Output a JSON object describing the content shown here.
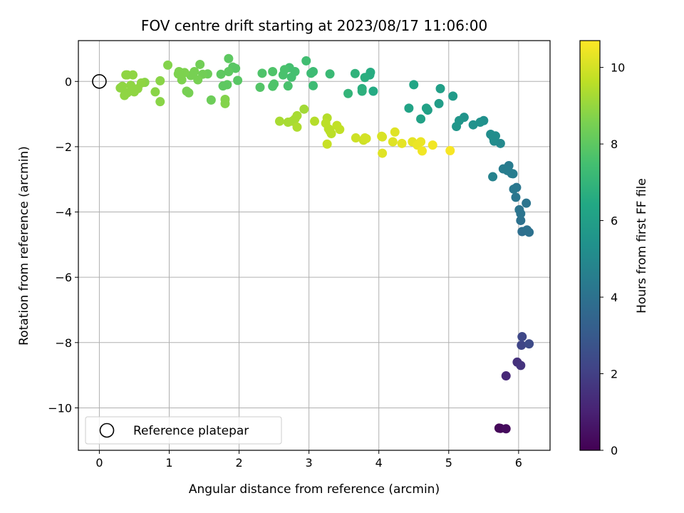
{
  "chart_data": {
    "type": "scatter",
    "title": "FOV centre drift starting at 2023/08/17 11:06:00",
    "xlabel": "Angular distance from reference (arcmin)",
    "ylabel": "Rotation from reference (arcmin)",
    "xlim": [
      -0.3,
      6.45
    ],
    "ylim": [
      -11.3,
      1.25
    ],
    "xticks": [
      0,
      1,
      2,
      3,
      4,
      5,
      6
    ],
    "yticks": [
      -10,
      -8,
      -6,
      -4,
      -2,
      0
    ],
    "grid": true,
    "legend": {
      "position": "lower-left",
      "entries": [
        "Reference platepar"
      ]
    },
    "reference_point": {
      "x": 0,
      "y": 0
    },
    "colorbar": {
      "label": "Hours from first FF file",
      "range": [
        0,
        10.7
      ],
      "ticks": [
        0,
        2,
        4,
        6,
        8,
        10
      ],
      "colormap": "viridis"
    },
    "points": [
      {
        "x": 5.72,
        "y": -10.62,
        "t": 0.1
      },
      {
        "x": 5.74,
        "y": -10.63,
        "t": 0.2
      },
      {
        "x": 5.82,
        "y": -10.64,
        "t": 0.3
      },
      {
        "x": 5.82,
        "y": -9.02,
        "t": 1.2
      },
      {
        "x": 5.98,
        "y": -8.6,
        "t": 1.5
      },
      {
        "x": 6.03,
        "y": -8.7,
        "t": 1.6
      },
      {
        "x": 6.04,
        "y": -8.08,
        "t": 2.2
      },
      {
        "x": 6.05,
        "y": -7.82,
        "t": 2.3
      },
      {
        "x": 6.15,
        "y": -8.04,
        "t": 2.4
      },
      {
        "x": 6.05,
        "y": -4.6,
        "t": 3.9
      },
      {
        "x": 6.15,
        "y": -4.62,
        "t": 4.0
      },
      {
        "x": 6.03,
        "y": -4.26,
        "t": 4.0
      },
      {
        "x": 6.12,
        "y": -4.55,
        "t": 4.0
      },
      {
        "x": 6.03,
        "y": -4.05,
        "t": 4.1
      },
      {
        "x": 6.01,
        "y": -3.93,
        "t": 4.1
      },
      {
        "x": 6.11,
        "y": -3.73,
        "t": 4.1
      },
      {
        "x": 5.96,
        "y": -3.55,
        "t": 4.2
      },
      {
        "x": 5.97,
        "y": -3.25,
        "t": 4.2
      },
      {
        "x": 5.93,
        "y": -3.3,
        "t": 4.3
      },
      {
        "x": 5.9,
        "y": -2.82,
        "t": 4.4
      },
      {
        "x": 5.86,
        "y": -2.58,
        "t": 4.4
      },
      {
        "x": 5.78,
        "y": -2.68,
        "t": 4.5
      },
      {
        "x": 5.84,
        "y": -2.73,
        "t": 4.5
      },
      {
        "x": 5.92,
        "y": -2.83,
        "t": 4.5
      },
      {
        "x": 5.63,
        "y": -2.92,
        "t": 4.7
      },
      {
        "x": 5.74,
        "y": -1.9,
        "t": 5.0
      },
      {
        "x": 5.65,
        "y": -1.83,
        "t": 5.1
      },
      {
        "x": 5.67,
        "y": -1.67,
        "t": 5.2
      },
      {
        "x": 5.6,
        "y": -1.62,
        "t": 5.2
      },
      {
        "x": 5.64,
        "y": -1.73,
        "t": 5.2
      },
      {
        "x": 5.5,
        "y": -1.2,
        "t": 5.3
      },
      {
        "x": 5.45,
        "y": -1.25,
        "t": 5.4
      },
      {
        "x": 5.35,
        "y": -1.33,
        "t": 5.4
      },
      {
        "x": 5.22,
        "y": -1.1,
        "t": 5.5
      },
      {
        "x": 5.15,
        "y": -1.2,
        "t": 5.6
      },
      {
        "x": 5.11,
        "y": -1.38,
        "t": 5.6
      },
      {
        "x": 5.06,
        "y": -0.45,
        "t": 5.8
      },
      {
        "x": 4.86,
        "y": -0.68,
        "t": 5.9
      },
      {
        "x": 4.88,
        "y": -0.22,
        "t": 6.0
      },
      {
        "x": 4.7,
        "y": -0.88,
        "t": 6.0
      },
      {
        "x": 4.68,
        "y": -0.82,
        "t": 6.1
      },
      {
        "x": 4.6,
        "y": -1.15,
        "t": 6.1
      },
      {
        "x": 4.43,
        "y": -0.82,
        "t": 6.2
      },
      {
        "x": 4.5,
        "y": -0.1,
        "t": 6.3
      },
      {
        "x": 3.92,
        "y": -0.3,
        "t": 6.5
      },
      {
        "x": 3.88,
        "y": 0.28,
        "t": 6.6
      },
      {
        "x": 3.87,
        "y": 0.2,
        "t": 6.6
      },
      {
        "x": 3.8,
        "y": 0.12,
        "t": 6.7
      },
      {
        "x": 3.76,
        "y": -0.22,
        "t": 6.7
      },
      {
        "x": 3.76,
        "y": -0.3,
        "t": 6.8
      },
      {
        "x": 3.66,
        "y": 0.24,
        "t": 6.9
      },
      {
        "x": 3.56,
        "y": -0.37,
        "t": 7.0
      },
      {
        "x": 3.3,
        "y": 0.23,
        "t": 7.2
      },
      {
        "x": 3.06,
        "y": -0.13,
        "t": 7.3
      },
      {
        "x": 3.06,
        "y": 0.3,
        "t": 7.3
      },
      {
        "x": 3.03,
        "y": 0.25,
        "t": 7.3
      },
      {
        "x": 2.96,
        "y": 0.63,
        "t": 7.4
      },
      {
        "x": 2.8,
        "y": 0.3,
        "t": 7.5
      },
      {
        "x": 2.75,
        "y": 0.13,
        "t": 7.5
      },
      {
        "x": 2.72,
        "y": 0.42,
        "t": 7.5
      },
      {
        "x": 2.7,
        "y": -0.14,
        "t": 7.6
      },
      {
        "x": 2.65,
        "y": 0.36,
        "t": 7.6
      },
      {
        "x": 2.63,
        "y": 0.2,
        "t": 7.6
      },
      {
        "x": 2.5,
        "y": -0.08,
        "t": 7.7
      },
      {
        "x": 2.48,
        "y": 0.3,
        "t": 7.7
      },
      {
        "x": 2.48,
        "y": -0.15,
        "t": 7.7
      },
      {
        "x": 2.33,
        "y": 0.25,
        "t": 7.7
      },
      {
        "x": 2.3,
        "y": -0.18,
        "t": 7.8
      },
      {
        "x": 1.98,
        "y": 0.03,
        "t": 7.9
      },
      {
        "x": 1.95,
        "y": 0.4,
        "t": 7.9
      },
      {
        "x": 1.91,
        "y": 0.44,
        "t": 7.9
      },
      {
        "x": 1.85,
        "y": 0.7,
        "t": 8.0
      },
      {
        "x": 1.85,
        "y": 0.3,
        "t": 8.0
      },
      {
        "x": 1.83,
        "y": -0.1,
        "t": 8.0
      },
      {
        "x": 1.77,
        "y": -0.14,
        "t": 8.0
      },
      {
        "x": 1.74,
        "y": 0.22,
        "t": 8.0
      },
      {
        "x": 1.6,
        "y": -0.57,
        "t": 8.3
      },
      {
        "x": 1.55,
        "y": 0.23,
        "t": 8.3
      },
      {
        "x": 1.48,
        "y": 0.22,
        "t": 8.4
      },
      {
        "x": 1.44,
        "y": 0.52,
        "t": 8.4
      },
      {
        "x": 1.41,
        "y": 0.05,
        "t": 8.5
      },
      {
        "x": 1.36,
        "y": 0.3,
        "t": 8.5
      },
      {
        "x": 1.31,
        "y": 0.18,
        "t": 8.5
      },
      {
        "x": 1.28,
        "y": -0.35,
        "t": 8.5
      },
      {
        "x": 1.25,
        "y": -0.3,
        "t": 8.5
      },
      {
        "x": 1.22,
        "y": 0.27,
        "t": 8.6
      },
      {
        "x": 1.18,
        "y": 0.05,
        "t": 8.6
      },
      {
        "x": 1.14,
        "y": 0.3,
        "t": 8.6
      },
      {
        "x": 1.13,
        "y": 0.23,
        "t": 8.6
      },
      {
        "x": 0.98,
        "y": 0.5,
        "t": 8.7
      },
      {
        "x": 1.8,
        "y": -0.55,
        "t": 8.7
      },
      {
        "x": 1.8,
        "y": -0.68,
        "t": 8.7
      },
      {
        "x": 0.87,
        "y": 0.02,
        "t": 8.8
      },
      {
        "x": 0.87,
        "y": -0.62,
        "t": 8.8
      },
      {
        "x": 0.8,
        "y": -0.32,
        "t": 8.8
      },
      {
        "x": 0.65,
        "y": -0.03,
        "t": 8.8
      },
      {
        "x": 0.6,
        "y": -0.05,
        "t": 8.9
      },
      {
        "x": 0.55,
        "y": -0.22,
        "t": 8.9
      },
      {
        "x": 0.5,
        "y": -0.32,
        "t": 8.9
      },
      {
        "x": 0.48,
        "y": 0.2,
        "t": 8.9
      },
      {
        "x": 0.45,
        "y": -0.12,
        "t": 8.9
      },
      {
        "x": 0.4,
        "y": -0.35,
        "t": 8.9
      },
      {
        "x": 0.4,
        "y": 0.2,
        "t": 8.9
      },
      {
        "x": 0.38,
        "y": 0.2,
        "t": 8.9
      },
      {
        "x": 0.36,
        "y": -0.43,
        "t": 8.9
      },
      {
        "x": 0.33,
        "y": -0.15,
        "t": 8.9
      },
      {
        "x": 0.3,
        "y": -0.2,
        "t": 8.9
      },
      {
        "x": 2.93,
        "y": -0.85,
        "t": 9.2
      },
      {
        "x": 2.83,
        "y": -1.05,
        "t": 9.3
      },
      {
        "x": 2.8,
        "y": -1.15,
        "t": 9.3
      },
      {
        "x": 2.76,
        "y": -1.22,
        "t": 9.3
      },
      {
        "x": 2.7,
        "y": -1.25,
        "t": 9.3
      },
      {
        "x": 2.58,
        "y": -1.22,
        "t": 9.3
      },
      {
        "x": 2.83,
        "y": -1.4,
        "t": 9.4
      },
      {
        "x": 3.08,
        "y": -1.22,
        "t": 9.5
      },
      {
        "x": 3.26,
        "y": -1.12,
        "t": 9.5
      },
      {
        "x": 3.24,
        "y": -1.28,
        "t": 9.6
      },
      {
        "x": 3.28,
        "y": -1.45,
        "t": 9.6
      },
      {
        "x": 3.3,
        "y": -1.52,
        "t": 9.6
      },
      {
        "x": 3.32,
        "y": -1.6,
        "t": 9.6
      },
      {
        "x": 3.4,
        "y": -1.35,
        "t": 9.7
      },
      {
        "x": 3.44,
        "y": -1.47,
        "t": 9.7
      },
      {
        "x": 3.26,
        "y": -1.92,
        "t": 9.8
      },
      {
        "x": 3.67,
        "y": -1.73,
        "t": 9.9
      },
      {
        "x": 3.78,
        "y": -1.8,
        "t": 9.9
      },
      {
        "x": 3.8,
        "y": -1.73,
        "t": 10.0
      },
      {
        "x": 3.82,
        "y": -1.75,
        "t": 10.0
      },
      {
        "x": 4.04,
        "y": -1.68,
        "t": 10.1
      },
      {
        "x": 4.05,
        "y": -1.7,
        "t": 10.1
      },
      {
        "x": 4.05,
        "y": -2.2,
        "t": 10.2
      },
      {
        "x": 4.2,
        "y": -1.85,
        "t": 10.2
      },
      {
        "x": 4.23,
        "y": -1.55,
        "t": 10.2
      },
      {
        "x": 4.33,
        "y": -1.9,
        "t": 10.3
      },
      {
        "x": 4.48,
        "y": -1.85,
        "t": 10.3
      },
      {
        "x": 4.55,
        "y": -1.95,
        "t": 10.4
      },
      {
        "x": 4.6,
        "y": -1.85,
        "t": 10.4
      },
      {
        "x": 4.62,
        "y": -2.13,
        "t": 10.5
      },
      {
        "x": 4.77,
        "y": -1.95,
        "t": 10.5
      },
      {
        "x": 5.02,
        "y": -2.12,
        "t": 10.6
      }
    ]
  }
}
